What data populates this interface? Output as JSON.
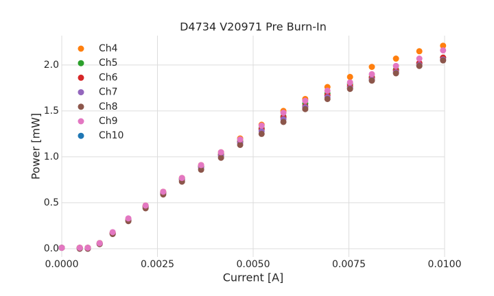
{
  "chart_data": {
    "type": "scatter",
    "title": "D4734 V20971 Pre Burn-In",
    "x_label": "Current [A]",
    "y_label": "Power [mW]",
    "x": [
      0,
      0.00047,
      0.00068,
      0.00099,
      0.00133,
      0.00174,
      0.00219,
      0.00265,
      0.00314,
      0.00364,
      0.00416,
      0.00466,
      0.00522,
      0.00579,
      0.00636,
      0.00694,
      0.00753,
      0.0081,
      0.00873,
      0.00934,
      0.00996
    ],
    "series": [
      {
        "name": "Ch4",
        "color": "#ff7f0e",
        "values": [
          0.01,
          0.01,
          0.01,
          0.06,
          0.17,
          0.32,
          0.47,
          0.62,
          0.77,
          0.91,
          1.05,
          1.2,
          1.35,
          1.5,
          1.63,
          1.76,
          1.87,
          1.98,
          2.07,
          2.15,
          2.21
        ]
      },
      {
        "name": "Ch5",
        "color": "#2ca02c",
        "values": [
          0.01,
          0.01,
          0.01,
          0.06,
          0.17,
          0.31,
          0.46,
          0.61,
          0.76,
          0.9,
          1.03,
          1.17,
          1.31,
          1.44,
          1.58,
          1.69,
          1.79,
          1.87,
          1.95,
          2.02,
          2.08
        ]
      },
      {
        "name": "Ch6",
        "color": "#d62728",
        "values": [
          0.01,
          0.01,
          0.01,
          0.06,
          0.17,
          0.31,
          0.46,
          0.61,
          0.75,
          0.89,
          1.02,
          1.16,
          1.3,
          1.43,
          1.55,
          1.67,
          1.77,
          1.86,
          1.94,
          2.02,
          2.08
        ]
      },
      {
        "name": "Ch7",
        "color": "#9467bd",
        "values": [
          0.01,
          0,
          0,
          0.05,
          0.16,
          0.31,
          0.45,
          0.6,
          0.75,
          0.88,
          1.01,
          1.15,
          1.28,
          1.41,
          1.54,
          1.65,
          1.75,
          1.84,
          1.92,
          2.0,
          2.06
        ]
      },
      {
        "name": "Ch8",
        "color": "#8c564b",
        "values": [
          0.01,
          0,
          0,
          0.05,
          0.16,
          0.3,
          0.44,
          0.59,
          0.73,
          0.86,
          0.99,
          1.13,
          1.25,
          1.38,
          1.52,
          1.63,
          1.74,
          1.83,
          1.91,
          1.99,
          2.05
        ]
      },
      {
        "name": "Ch9",
        "color": "#e377c2",
        "values": [
          0.01,
          0.01,
          0.01,
          0.06,
          0.18,
          0.33,
          0.47,
          0.62,
          0.77,
          0.91,
          1.05,
          1.19,
          1.34,
          1.48,
          1.61,
          1.72,
          1.81,
          1.9,
          1.99,
          2.07,
          2.16
        ]
      },
      {
        "name": "Ch10",
        "color": "#1f77b4",
        "values": [
          null,
          null,
          null,
          null,
          null,
          null,
          null,
          null,
          null,
          null,
          null,
          null,
          null,
          null,
          null,
          null,
          null,
          null,
          null,
          null,
          null
        ]
      }
    ],
    "xlim": [
      0,
      0.01
    ],
    "xticks": [
      {
        "value": 0,
        "label": "0.0000"
      },
      {
        "value": 0.0025,
        "label": "0.0025"
      },
      {
        "value": 0.005,
        "label": "0.0050"
      },
      {
        "value": 0.0075,
        "label": "0.0075"
      },
      {
        "value": 0.01,
        "label": "0.0100"
      }
    ],
    "ylim": [
      -0.09,
      2.32
    ],
    "yticks": [
      {
        "value": 0,
        "label": "0.0"
      },
      0.5,
      {
        "value": 1,
        "label": "1.0"
      },
      1.5,
      {
        "value": 2,
        "label": "2.0"
      }
    ],
    "grid": true,
    "legend": "upper-left"
  }
}
